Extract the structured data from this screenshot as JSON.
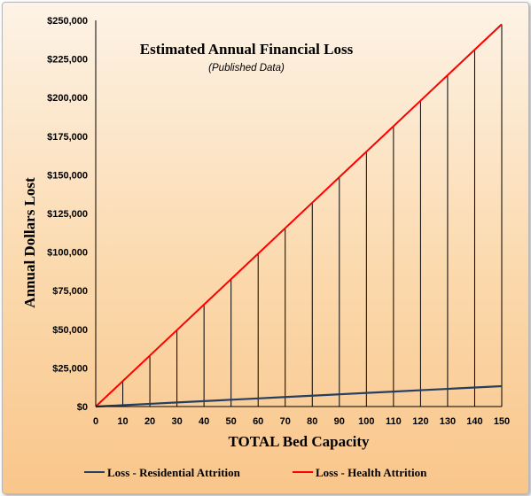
{
  "chart_data": {
    "type": "line",
    "title": "Estimated Annual Financial Loss",
    "subtitle": "(Published Data)",
    "xlabel": "TOTAL Bed Capacity",
    "ylabel": "Annual  Dollars  Lost",
    "xlim": [
      0,
      150
    ],
    "ylim": [
      0,
      250000
    ],
    "x": [
      0,
      10,
      20,
      30,
      40,
      50,
      60,
      70,
      80,
      90,
      100,
      110,
      120,
      130,
      140,
      150
    ],
    "x_tick_labels": [
      "0",
      "10",
      "20",
      "30",
      "40",
      "50",
      "60",
      "70",
      "80",
      "90",
      "100",
      "110",
      "120",
      "130",
      "140",
      "150"
    ],
    "y_ticks": [
      0,
      25000,
      50000,
      75000,
      100000,
      125000,
      150000,
      175000,
      200000,
      225000,
      250000
    ],
    "y_tick_labels": [
      "$0",
      "$25,000",
      "$50,000",
      "$75,000",
      "$100,000",
      "$125,000",
      "$150,000",
      "$175,000",
      "$200,000",
      "$225,000",
      "$250,000"
    ],
    "drop_lines": true,
    "grid": false,
    "legend_position": "bottom",
    "series": [
      {
        "name": "Loss - Residential Attrition",
        "color": "#243f60",
        "values": [
          0,
          880,
          1760,
          2640,
          3520,
          4400,
          5280,
          6160,
          7040,
          7920,
          8800,
          9680,
          10560,
          11440,
          12320,
          13200
        ]
      },
      {
        "name": "Loss - Health Attrition",
        "color": "#ff0000",
        "values": [
          0,
          16500,
          33000,
          49500,
          66000,
          82500,
          99000,
          115500,
          132000,
          148500,
          165000,
          181500,
          198000,
          214500,
          231000,
          247500
        ]
      }
    ]
  }
}
